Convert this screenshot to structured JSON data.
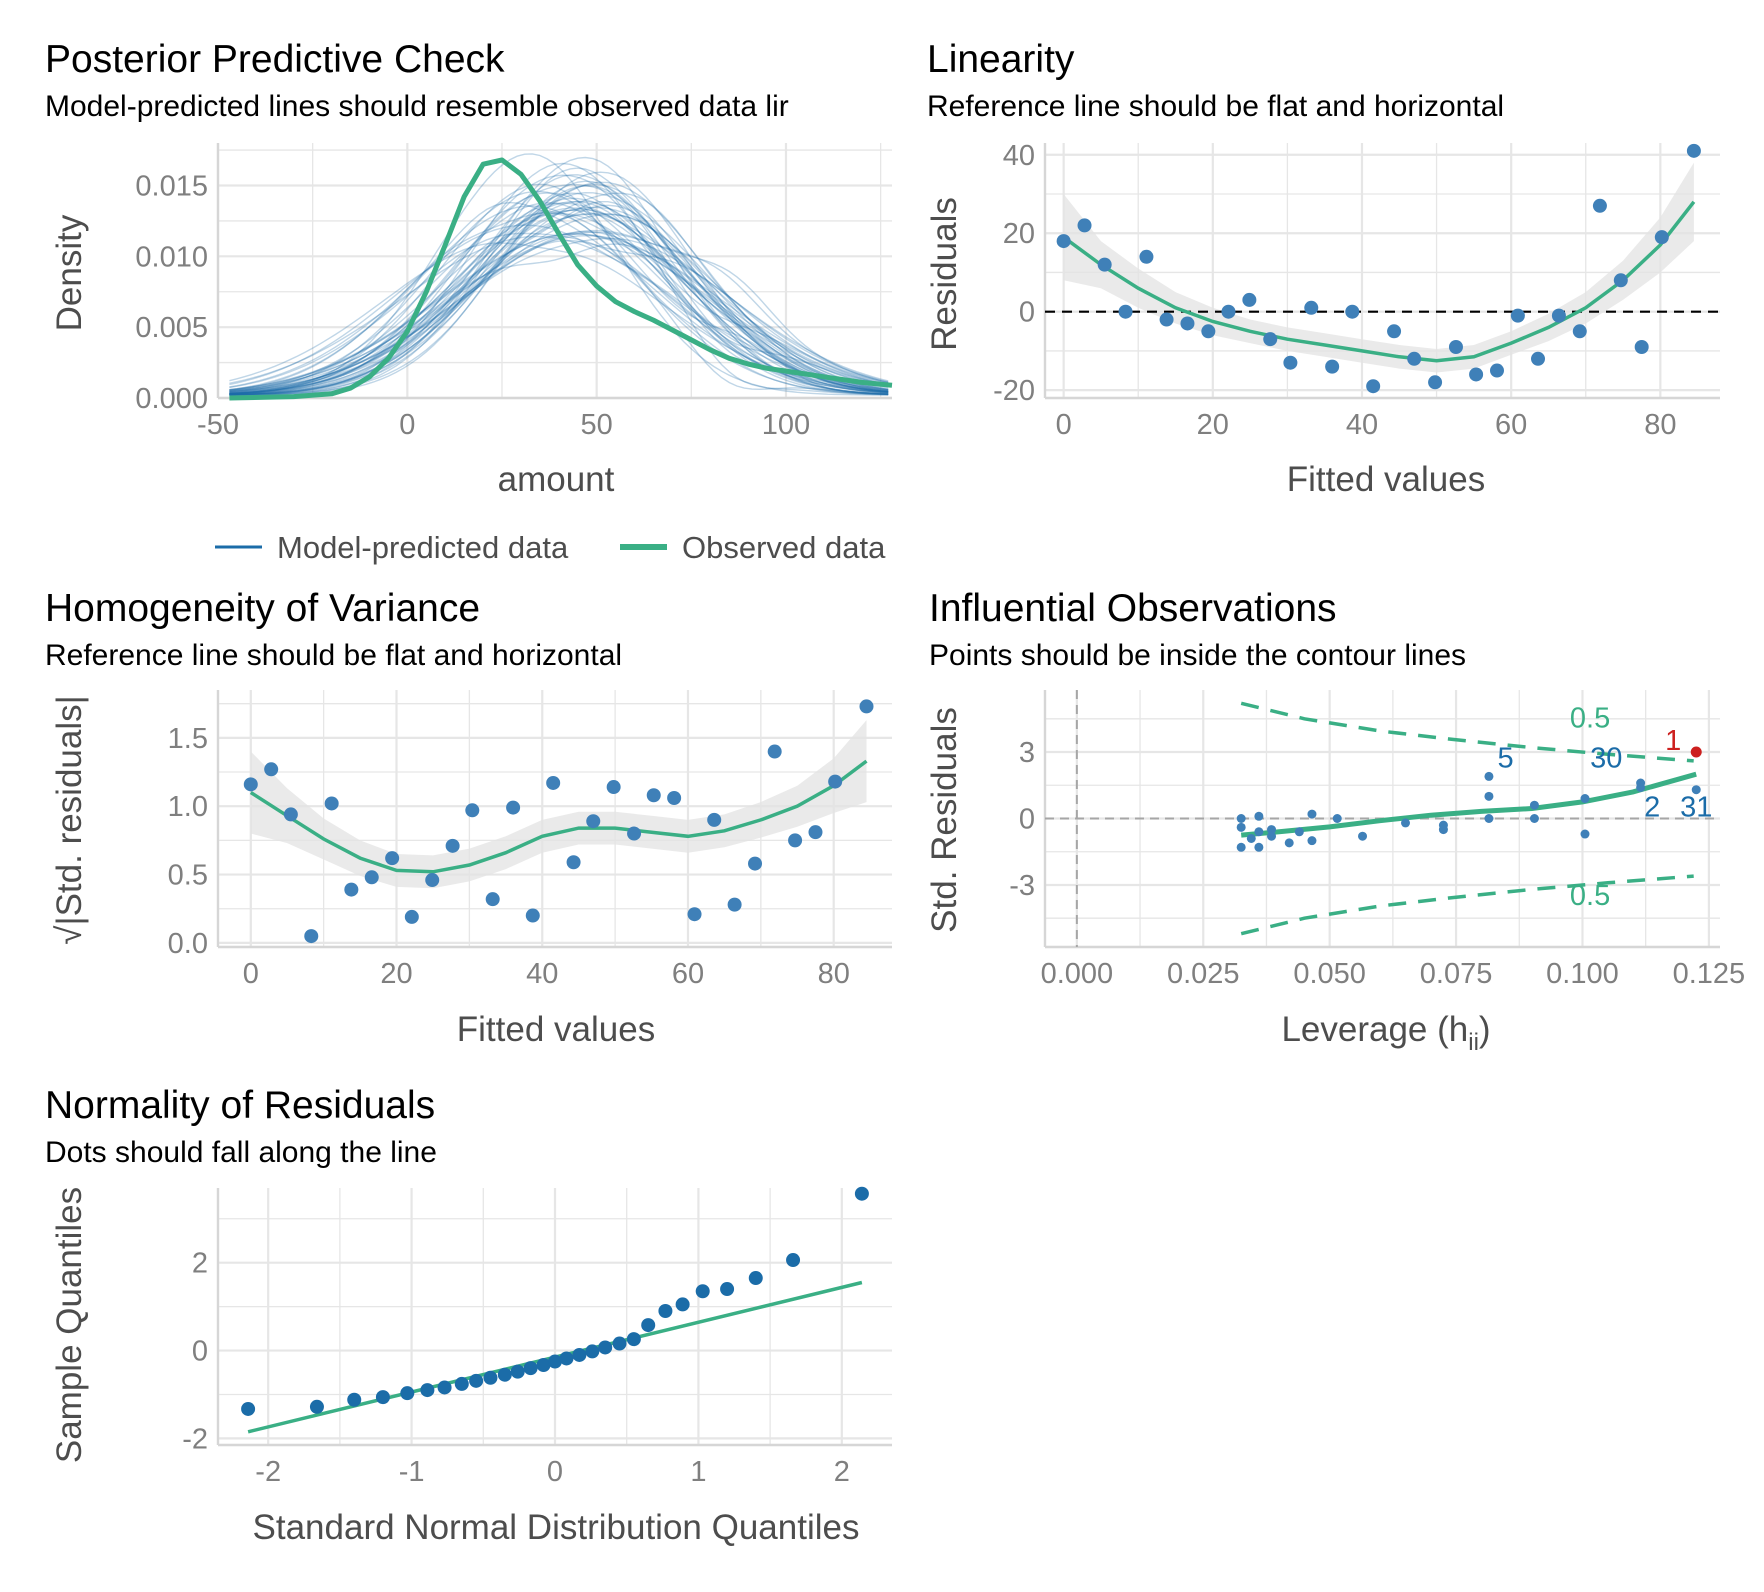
{
  "colors": {
    "blue": "#1b6ca8",
    "green": "#3aaf85",
    "point": "#3f80b8",
    "red": "#cd201f",
    "grid": "#e6e6e6",
    "ribbon": "#e3e3e3",
    "axis_text": "#7f7f7f",
    "label_text": "#4d4d4d"
  },
  "chart_data": [
    {
      "id": "ppc",
      "type": "line",
      "title": "Posterior Predictive Check",
      "subtitle": "Model-predicted lines should resemble observed data lir",
      "xlabel": "amount",
      "ylabel": "Density",
      "xlim": [
        -50,
        128
      ],
      "ylim": [
        0,
        0.018
      ],
      "xticks": [
        -50,
        0,
        50,
        100
      ],
      "xtick_labels": [
        "-50",
        "0",
        "50",
        "100"
      ],
      "yticks": [
        0,
        0.005,
        0.01,
        0.015
      ],
      "ytick_labels": [
        "0.000",
        "0.005",
        "0.010",
        "0.015"
      ],
      "legend_position": "bottom",
      "legend": [
        "Model-predicted data",
        "Observed data"
      ],
      "model_predicted_curves": {
        "count": 50,
        "peak_range": [
          0.009,
          0.0135
        ],
        "mode_range": [
          20,
          62
        ]
      },
      "series": [
        {
          "name": "Observed data",
          "x": [
            -47,
            -30,
            -20,
            -15,
            -10,
            -5,
            0,
            5,
            10,
            15,
            20,
            25,
            30,
            35,
            40,
            45,
            50,
            55,
            60,
            65,
            70,
            75,
            80,
            85,
            90,
            95,
            100,
            105,
            110,
            115,
            120,
            128
          ],
          "y": [
            0.0,
            0.0001,
            0.0003,
            0.0007,
            0.0015,
            0.0028,
            0.0047,
            0.0075,
            0.0108,
            0.0142,
            0.0165,
            0.0168,
            0.0158,
            0.0139,
            0.0116,
            0.0094,
            0.0079,
            0.0068,
            0.0061,
            0.0055,
            0.0048,
            0.0041,
            0.0034,
            0.0028,
            0.0024,
            0.0021,
            0.0019,
            0.0017,
            0.0015,
            0.0013,
            0.0011,
            0.0009
          ]
        }
      ]
    },
    {
      "id": "linearity",
      "type": "scatter",
      "title": "Linearity",
      "subtitle": "Reference line should be flat and horizontal",
      "xlabel": "Fitted values",
      "ylabel": "Residuals",
      "xlim": [
        -2.5,
        88
      ],
      "ylim": [
        -22,
        43
      ],
      "xticks": [
        0,
        20,
        40,
        60,
        80
      ],
      "xtick_labels": [
        "0",
        "20",
        "40",
        "60",
        "80"
      ],
      "yticks": [
        -20,
        0,
        20,
        40
      ],
      "ytick_labels": [
        "-20",
        "0",
        "20",
        "40"
      ],
      "reference_line": 0,
      "points": {
        "x": [
          0.0,
          2.8,
          5.5,
          8.3,
          11.1,
          13.8,
          16.6,
          19.4,
          22.1,
          24.9,
          27.7,
          30.4,
          33.2,
          36.0,
          38.7,
          41.5,
          44.3,
          47.0,
          49.8,
          52.6,
          55.3,
          58.1,
          60.9,
          63.6,
          66.4,
          69.2,
          71.9,
          74.7,
          77.5,
          80.2,
          84.5
        ],
        "y": [
          18,
          22,
          12,
          0,
          14,
          -2,
          -3,
          -5,
          0,
          3,
          -7,
          -13,
          1,
          -14,
          0,
          -19,
          -5,
          -12,
          -18,
          -9,
          -16,
          -15,
          -1,
          -12,
          -1,
          -5,
          27,
          8,
          -9,
          19,
          41
        ]
      },
      "smooth": {
        "x": [
          0,
          5,
          10,
          15,
          20,
          25,
          30,
          35,
          40,
          45,
          50,
          55,
          60,
          65,
          70,
          75,
          80,
          84.5
        ],
        "y": [
          19,
          12,
          6,
          1,
          -2.5,
          -5,
          -7,
          -8.5,
          -10,
          -11.5,
          -12.5,
          -11.5,
          -8,
          -4,
          1,
          8,
          17,
          28
        ],
        "band": [
          11,
          6,
          5,
          4,
          3.5,
          3,
          3,
          3,
          3,
          3,
          3,
          3,
          3,
          3.5,
          4,
          5,
          7,
          10
        ]
      }
    },
    {
      "id": "homogeneity",
      "type": "scatter",
      "title": "Homogeneity of Variance",
      "subtitle": "Reference line should be flat and horizontal",
      "xlabel": "Fitted values",
      "ylabel": "√|Std. residuals|",
      "xlim": [
        -4.5,
        88
      ],
      "ylim": [
        -0.03,
        1.85
      ],
      "xticks": [
        0,
        20,
        40,
        60,
        80
      ],
      "xtick_labels": [
        "0",
        "20",
        "40",
        "60",
        "80"
      ],
      "yticks": [
        0,
        0.5,
        1.0,
        1.5
      ],
      "ytick_labels": [
        "0.0",
        "0.5",
        "1.0",
        "1.5"
      ],
      "points": {
        "x": [
          0.0,
          2.8,
          5.5,
          8.3,
          11.1,
          13.8,
          16.6,
          19.4,
          22.1,
          24.9,
          27.7,
          30.4,
          33.2,
          36.0,
          38.7,
          41.5,
          44.3,
          47.0,
          49.8,
          52.6,
          55.3,
          58.1,
          60.9,
          63.6,
          66.4,
          69.2,
          71.9,
          74.7,
          77.5,
          80.2,
          84.5
        ],
        "y": [
          1.16,
          1.27,
          0.94,
          0.05,
          1.02,
          0.39,
          0.48,
          0.62,
          0.19,
          0.46,
          0.71,
          0.97,
          0.32,
          0.99,
          0.2,
          1.17,
          0.59,
          0.89,
          1.14,
          0.8,
          1.08,
          1.06,
          0.21,
          0.9,
          0.28,
          0.58,
          1.4,
          0.75,
          0.81,
          1.18,
          1.73
        ]
      },
      "smooth": {
        "x": [
          0,
          5,
          10,
          15,
          20,
          25,
          30,
          35,
          40,
          45,
          50,
          55,
          60,
          65,
          70,
          75,
          80,
          84.5
        ],
        "y": [
          1.1,
          0.93,
          0.76,
          0.62,
          0.53,
          0.52,
          0.57,
          0.66,
          0.78,
          0.84,
          0.84,
          0.81,
          0.78,
          0.82,
          0.9,
          1.0,
          1.15,
          1.33
        ],
        "band": [
          0.3,
          0.2,
          0.15,
          0.13,
          0.12,
          0.12,
          0.12,
          0.12,
          0.12,
          0.12,
          0.12,
          0.12,
          0.12,
          0.12,
          0.13,
          0.15,
          0.2,
          0.3
        ]
      }
    },
    {
      "id": "influence",
      "type": "scatter",
      "title": "Influential Observations",
      "subtitle": "Points should be inside the contour lines",
      "xlabel": "Leverage (hᵢᵢ)",
      "xlabel_main": "Leverage (",
      "xlabel_h": "h",
      "xlabel_sub": "ii",
      "xlabel_close": ")",
      "ylabel": "Std. Residuals",
      "xlim": [
        -0.0063,
        0.1272
      ],
      "ylim": [
        -5.8,
        5.8
      ],
      "xticks": [
        0.0,
        0.025,
        0.05,
        0.075,
        0.1,
        0.125
      ],
      "xtick_labels": [
        "0.000",
        "0.025",
        "0.050",
        "0.075",
        "0.100",
        "0.125"
      ],
      "yticks": [
        -3,
        0,
        3
      ],
      "ytick_labels": [
        "-3",
        "0",
        "3"
      ],
      "reference_lines": {
        "x": 0,
        "y": 0
      },
      "contour_label": "0.5",
      "contour_upper": {
        "x": [
          0.0325,
          0.045,
          0.06,
          0.075,
          0.09,
          0.105,
          0.122
        ],
        "y": [
          5.2,
          4.5,
          3.95,
          3.55,
          3.2,
          2.9,
          2.6
        ]
      },
      "contour_lower": {
        "x": [
          0.0325,
          0.045,
          0.06,
          0.075,
          0.09,
          0.105,
          0.122
        ],
        "y": [
          -5.2,
          -4.5,
          -3.95,
          -3.55,
          -3.2,
          -2.9,
          -2.6
        ]
      },
      "points": {
        "x": [
          0.0325,
          0.0325,
          0.0325,
          0.0345,
          0.036,
          0.036,
          0.036,
          0.0385,
          0.0385,
          0.042,
          0.044,
          0.0465,
          0.0465,
          0.0515,
          0.0565,
          0.065,
          0.0725,
          0.0725,
          0.0815,
          0.0815,
          0.0815,
          0.0905,
          0.0905,
          0.1005,
          0.1005,
          0.1115,
          0.1115,
          0.1225,
          0.1225
        ],
        "y": [
          0.0,
          -0.4,
          -1.3,
          -0.9,
          0.1,
          -0.6,
          -1.3,
          -0.8,
          -0.5,
          -1.1,
          -0.6,
          0.2,
          -1.0,
          0.0,
          -0.8,
          -0.2,
          -0.3,
          -0.5,
          0.0,
          1.0,
          1.9,
          0.0,
          0.6,
          0.9,
          -0.7,
          1.6,
          1.4,
          1.3,
          3.0
        ]
      },
      "highlight": {
        "label": "1",
        "x": 0.1225,
        "y": 3.0
      },
      "point_labels": [
        {
          "label": "5",
          "x": 0.0848,
          "y": 2.3
        },
        {
          "label": "30",
          "x": 0.1047,
          "y": 2.3
        },
        {
          "label": "2",
          "x": 0.1138,
          "y": 0.1
        },
        {
          "label": "31",
          "x": 0.1225,
          "y": 0.1
        }
      ],
      "smooth": {
        "x": [
          0.0325,
          0.04,
          0.05,
          0.06,
          0.07,
          0.08,
          0.09,
          0.1,
          0.11,
          0.1225
        ],
        "y": [
          -0.75,
          -0.6,
          -0.38,
          -0.1,
          0.15,
          0.32,
          0.45,
          0.75,
          1.2,
          2.0
        ]
      },
      "contour_label_positions": [
        {
          "x": 0.1015,
          "y": 4.1
        },
        {
          "x": 0.1015,
          "y": -3.9
        }
      ]
    },
    {
      "id": "normality",
      "type": "scatter",
      "title": "Normality of Residuals",
      "subtitle": "Dots should fall along the line",
      "xlabel": "Standard Normal Distribution Quantiles",
      "ylabel": "Sample Quantiles",
      "xlim": [
        -2.35,
        2.35
      ],
      "ylim": [
        -2.15,
        3.7
      ],
      "xticks": [
        -2,
        -1,
        0,
        1,
        2
      ],
      "xtick_labels": [
        "-2",
        "-1",
        "0",
        "1",
        "2"
      ],
      "yticks": [
        -2,
        0,
        2
      ],
      "ytick_labels": [
        "-2",
        "0",
        "2"
      ],
      "points": {
        "x": [
          -2.14,
          -1.66,
          -1.4,
          -1.2,
          -1.03,
          -0.89,
          -0.77,
          -0.65,
          -0.55,
          -0.45,
          -0.35,
          -0.26,
          -0.17,
          -0.08,
          0.0,
          0.08,
          0.17,
          0.26,
          0.35,
          0.45,
          0.55,
          0.65,
          0.77,
          0.89,
          1.03,
          1.2,
          1.4,
          1.66,
          2.14
        ],
        "y": [
          -1.33,
          -1.28,
          -1.12,
          -1.06,
          -0.97,
          -0.9,
          -0.84,
          -0.76,
          -0.69,
          -0.62,
          -0.55,
          -0.48,
          -0.4,
          -0.33,
          -0.25,
          -0.18,
          -0.1,
          -0.02,
          0.07,
          0.16,
          0.26,
          0.58,
          0.9,
          1.05,
          1.35,
          1.4,
          1.65,
          2.06,
          3.57
        ]
      },
      "line": {
        "x": [
          -2.14,
          2.14
        ],
        "y": [
          -1.85,
          1.55
        ]
      }
    }
  ]
}
